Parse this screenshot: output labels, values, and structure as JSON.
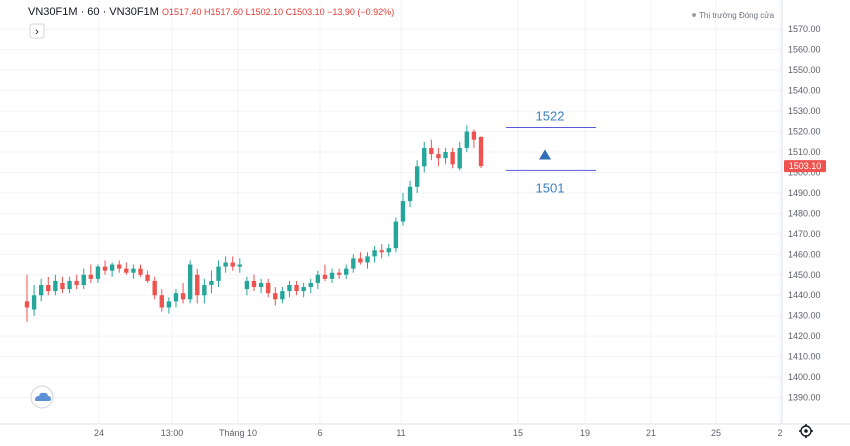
{
  "header": {
    "symbol_line": "VN30F1M · 60 · VN30F1M",
    "ohlc_text": "O1517.40 H1517.60 L1502.10 C1503.10 −13.90 (−0.92%)",
    "market_status": "Thị trường Đóng cửa",
    "expand_glyph": "›"
  },
  "price_tag": {
    "value": "1503.10",
    "color": "#ef5350"
  },
  "colors": {
    "up": "#26a69a",
    "down": "#ef5350",
    "grid": "#f0f3fa",
    "level_line": "#5b5bd6",
    "arrow": "#2f6db5",
    "level_label": "#3b82c4",
    "status_dot": "#9aa0a6"
  },
  "icons": {
    "cloud": "cloud-icon",
    "settings": "gear-icon",
    "expand": "chevron-right-icon",
    "arrow": "up-arrow-icon"
  },
  "chart_data": {
    "type": "candlestick",
    "ylim": [
      1380,
      1575
    ],
    "yticks": [
      1390,
      1400,
      1410,
      1420,
      1430,
      1440,
      1450,
      1460,
      1470,
      1480,
      1490,
      1500,
      1510,
      1520,
      1530,
      1540,
      1550,
      1560,
      1570
    ],
    "ytick_labels": [
      "1390.00",
      "1400.00",
      "1410.00",
      "1420.00",
      "1430.00",
      "1440.00",
      "1450.00",
      "1460.00",
      "1470.00",
      "1480.00",
      "1490.00",
      "1500.00",
      "1510.00",
      "1520.00",
      "1530.00",
      "1540.00",
      "1550.00",
      "1560.00",
      "1570.00"
    ],
    "xticks": [
      "24",
      "13:00",
      "Tháng 10",
      "6",
      "11",
      "15",
      "19",
      "21",
      "25",
      "2"
    ],
    "candles": [
      {
        "o": 1437,
        "h": 1450,
        "l": 1427,
        "c": 1434
      },
      {
        "o": 1433,
        "h": 1445,
        "l": 1430,
        "c": 1440
      },
      {
        "o": 1440,
        "h": 1448,
        "l": 1437,
        "c": 1445
      },
      {
        "o": 1445,
        "h": 1449,
        "l": 1440,
        "c": 1442
      },
      {
        "o": 1442,
        "h": 1450,
        "l": 1440,
        "c": 1447
      },
      {
        "o": 1446,
        "h": 1449,
        "l": 1441,
        "c": 1443
      },
      {
        "o": 1443,
        "h": 1449,
        "l": 1441,
        "c": 1447
      },
      {
        "o": 1447,
        "h": 1450,
        "l": 1443,
        "c": 1445
      },
      {
        "o": 1445,
        "h": 1453,
        "l": 1443,
        "c": 1450
      },
      {
        "o": 1450,
        "h": 1455,
        "l": 1446,
        "c": 1448
      },
      {
        "o": 1448,
        "h": 1455,
        "l": 1446,
        "c": 1454
      },
      {
        "o": 1454,
        "h": 1457,
        "l": 1450,
        "c": 1452
      },
      {
        "o": 1452,
        "h": 1456,
        "l": 1449,
        "c": 1455
      },
      {
        "o": 1455,
        "h": 1457,
        "l": 1451,
        "c": 1453
      },
      {
        "o": 1453,
        "h": 1456,
        "l": 1450,
        "c": 1451
      },
      {
        "o": 1451,
        "h": 1455,
        "l": 1448,
        "c": 1453
      },
      {
        "o": 1453,
        "h": 1455,
        "l": 1449,
        "c": 1450
      },
      {
        "o": 1450,
        "h": 1452,
        "l": 1446,
        "c": 1447
      },
      {
        "o": 1447,
        "h": 1449,
        "l": 1438,
        "c": 1440
      },
      {
        "o": 1440,
        "h": 1443,
        "l": 1432,
        "c": 1434
      },
      {
        "o": 1434,
        "h": 1439,
        "l": 1431,
        "c": 1437
      },
      {
        "o": 1437,
        "h": 1443,
        "l": 1434,
        "c": 1441
      },
      {
        "o": 1441,
        "h": 1446,
        "l": 1436,
        "c": 1438
      },
      {
        "o": 1438,
        "h": 1457,
        "l": 1436,
        "c": 1455
      },
      {
        "o": 1450,
        "h": 1453,
        "l": 1436,
        "c": 1440
      },
      {
        "o": 1440,
        "h": 1448,
        "l": 1436,
        "c": 1445
      },
      {
        "o": 1445,
        "h": 1452,
        "l": 1441,
        "c": 1447
      },
      {
        "o": 1447,
        "h": 1457,
        "l": 1444,
        "c": 1454
      },
      {
        "o": 1454,
        "h": 1459,
        "l": 1451,
        "c": 1456
      },
      {
        "o": 1456,
        "h": 1459,
        "l": 1452,
        "c": 1454
      },
      {
        "o": 1454,
        "h": 1458,
        "l": 1451,
        "c": 1455
      },
      {
        "o": 1443,
        "h": 1449,
        "l": 1440,
        "c": 1447
      },
      {
        "o": 1447,
        "h": 1450,
        "l": 1442,
        "c": 1444
      },
      {
        "o": 1444,
        "h": 1448,
        "l": 1441,
        "c": 1446
      },
      {
        "o": 1446,
        "h": 1448,
        "l": 1439,
        "c": 1441
      },
      {
        "o": 1441,
        "h": 1444,
        "l": 1435,
        "c": 1438
      },
      {
        "o": 1438,
        "h": 1444,
        "l": 1436,
        "c": 1442
      },
      {
        "o": 1442,
        "h": 1447,
        "l": 1439,
        "c": 1445
      },
      {
        "o": 1445,
        "h": 1447,
        "l": 1440,
        "c": 1442
      },
      {
        "o": 1442,
        "h": 1446,
        "l": 1439,
        "c": 1444
      },
      {
        "o": 1444,
        "h": 1448,
        "l": 1441,
        "c": 1446
      },
      {
        "o": 1446,
        "h": 1452,
        "l": 1443,
        "c": 1450
      },
      {
        "o": 1450,
        "h": 1455,
        "l": 1447,
        "c": 1448
      },
      {
        "o": 1448,
        "h": 1453,
        "l": 1446,
        "c": 1451
      },
      {
        "o": 1451,
        "h": 1453,
        "l": 1448,
        "c": 1450
      },
      {
        "o": 1450,
        "h": 1455,
        "l": 1448,
        "c": 1453
      },
      {
        "o": 1453,
        "h": 1460,
        "l": 1451,
        "c": 1458
      },
      {
        "o": 1458,
        "h": 1461,
        "l": 1455,
        "c": 1456
      },
      {
        "o": 1456,
        "h": 1461,
        "l": 1453,
        "c": 1459
      },
      {
        "o": 1459,
        "h": 1464,
        "l": 1456,
        "c": 1462
      },
      {
        "o": 1462,
        "h": 1465,
        "l": 1458,
        "c": 1461
      },
      {
        "o": 1461,
        "h": 1465,
        "l": 1459,
        "c": 1463
      },
      {
        "o": 1463,
        "h": 1478,
        "l": 1461,
        "c": 1476
      },
      {
        "o": 1476,
        "h": 1490,
        "l": 1474,
        "c": 1486
      },
      {
        "o": 1486,
        "h": 1496,
        "l": 1483,
        "c": 1493
      },
      {
        "o": 1493,
        "h": 1506,
        "l": 1490,
        "c": 1503
      },
      {
        "o": 1503,
        "h": 1515,
        "l": 1500,
        "c": 1512
      },
      {
        "o": 1512,
        "h": 1516,
        "l": 1506,
        "c": 1509
      },
      {
        "o": 1509,
        "h": 1512,
        "l": 1503,
        "c": 1507
      },
      {
        "o": 1507,
        "h": 1512,
        "l": 1504,
        "c": 1510
      },
      {
        "o": 1510,
        "h": 1512,
        "l": 1502,
        "c": 1504
      },
      {
        "o": 1502,
        "h": 1515,
        "l": 1501,
        "c": 1512
      },
      {
        "o": 1512,
        "h": 1523,
        "l": 1510,
        "c": 1520
      },
      {
        "o": 1520,
        "h": 1521,
        "l": 1512,
        "c": 1516
      },
      {
        "o": 1517.4,
        "h": 1517.6,
        "l": 1502.1,
        "c": 1503.1
      }
    ],
    "annotations": {
      "upper_level": {
        "value": 1522,
        "label": "1522"
      },
      "lower_level": {
        "value": 1501,
        "label": "1501"
      },
      "arrow": "up"
    }
  }
}
